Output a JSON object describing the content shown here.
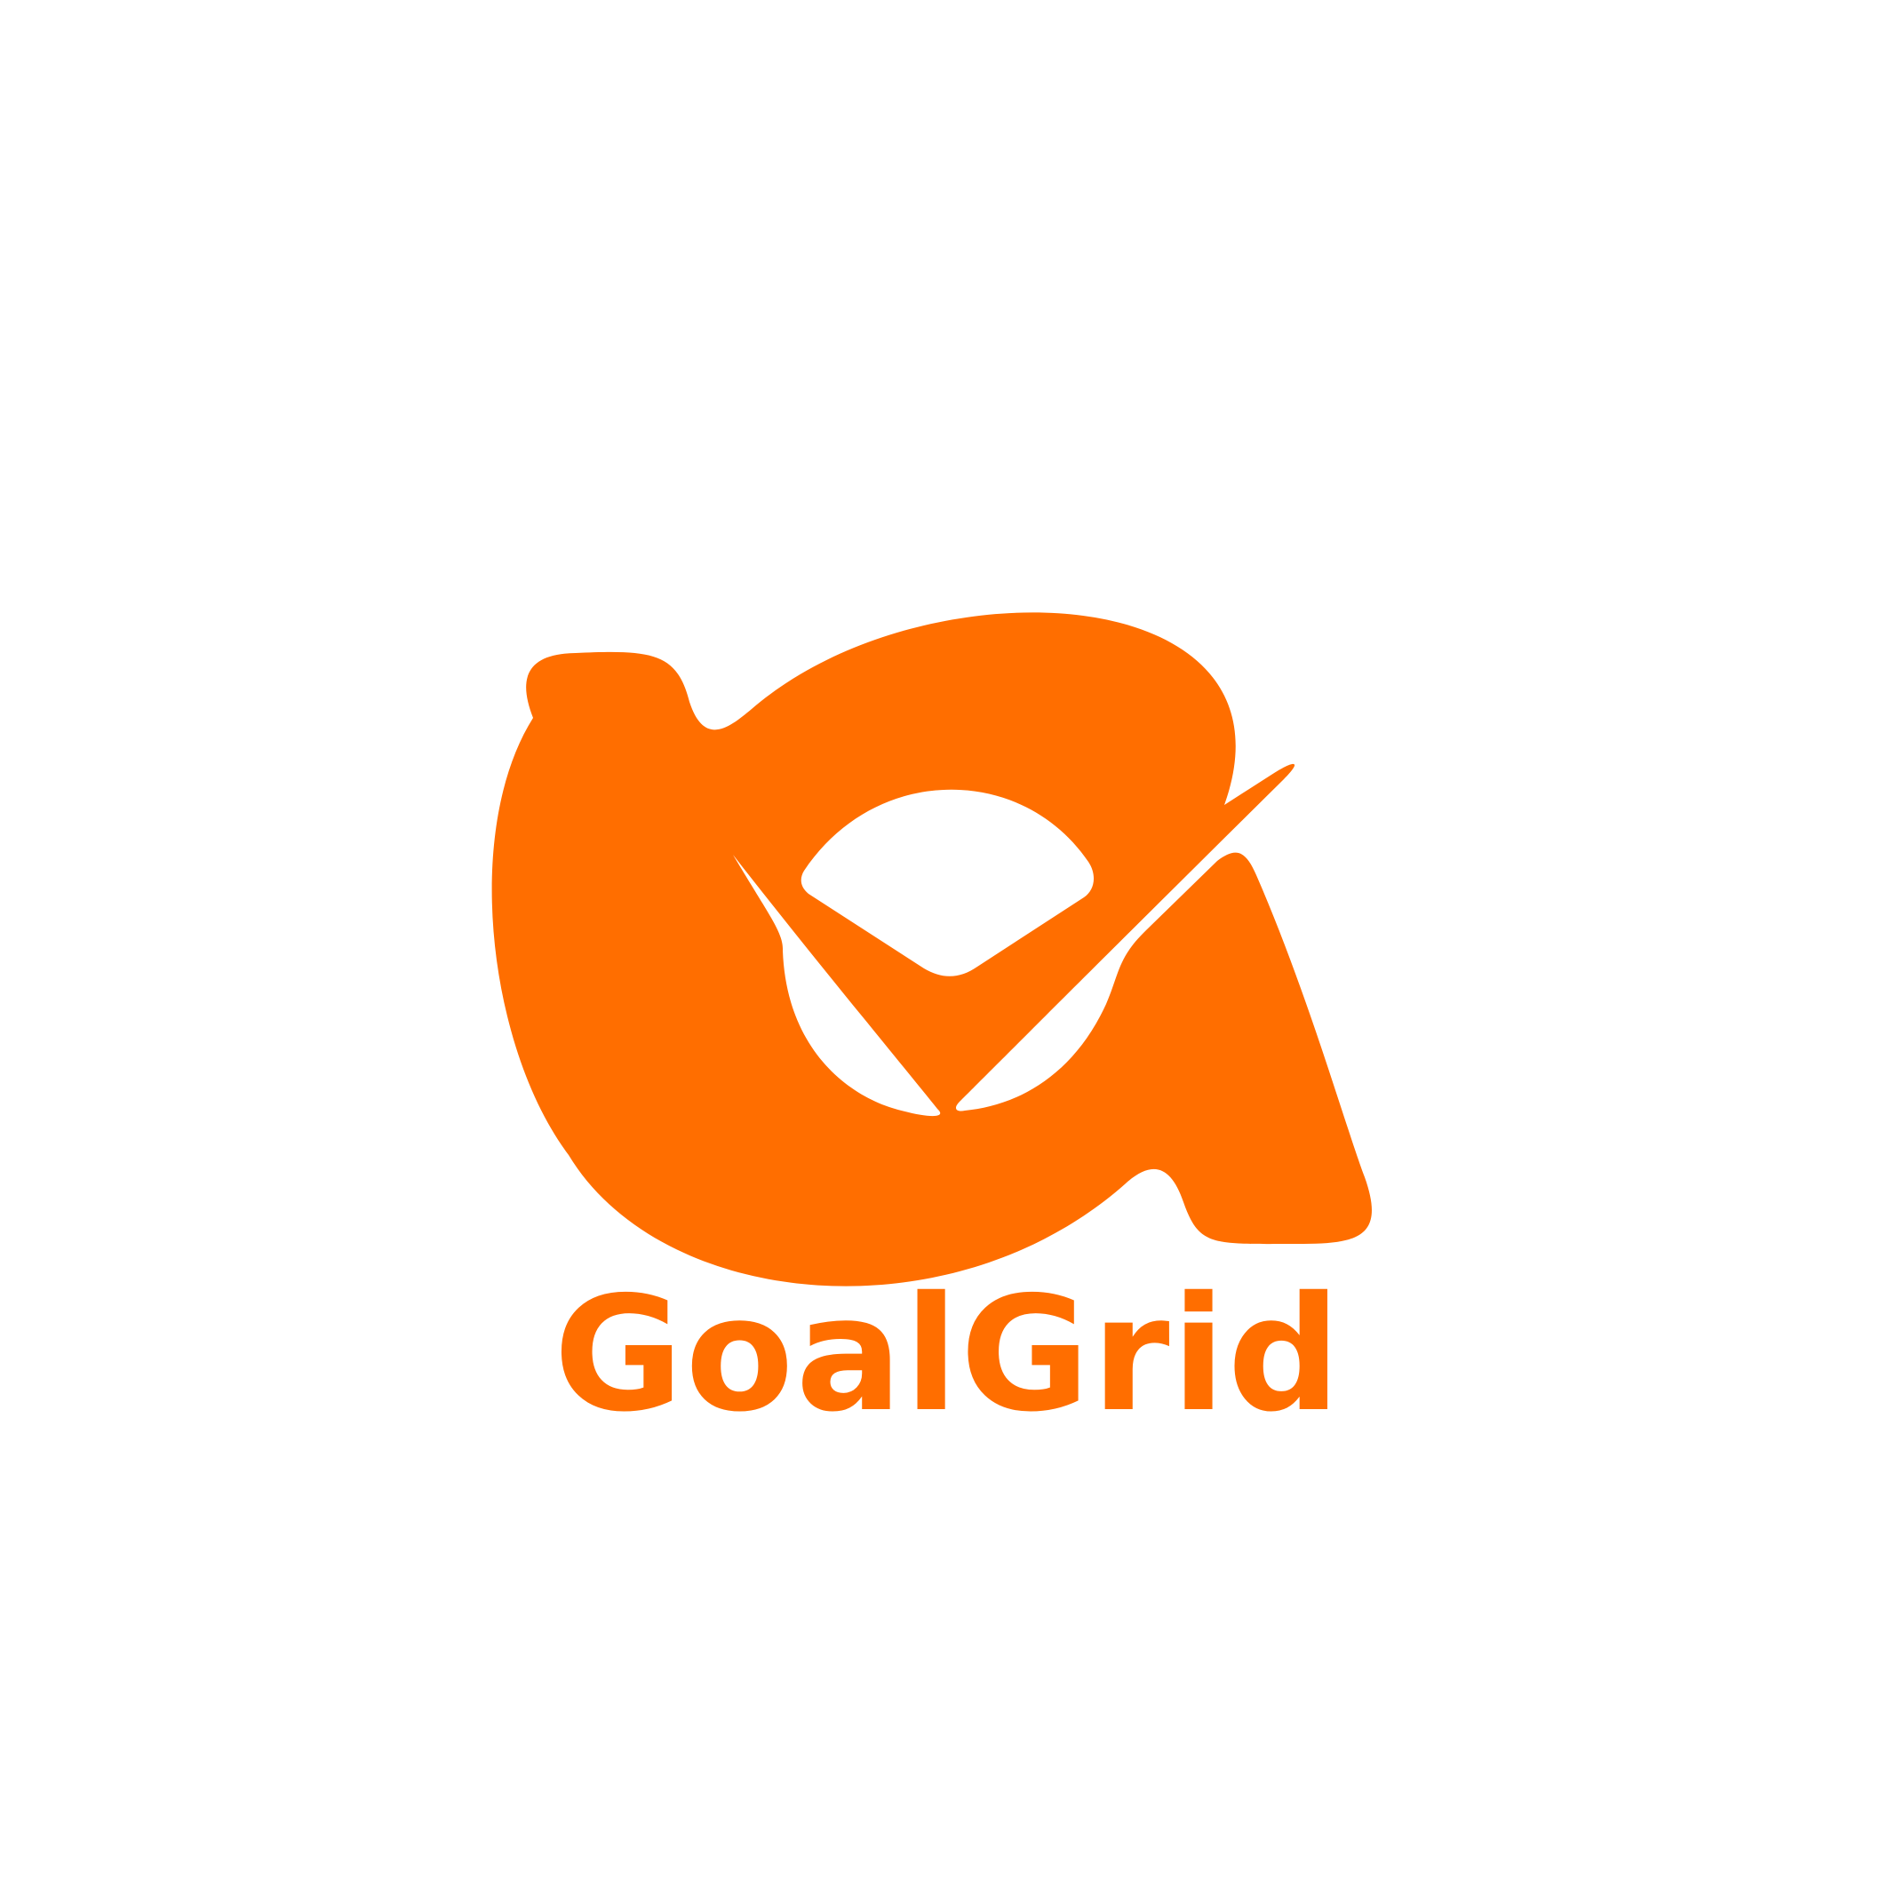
{
  "brand": {
    "name": "GoalGrid",
    "primary_color": "#ff6e00",
    "background_color": "#ffffff",
    "logo_icon": "checkmark-loop-logo-icon"
  }
}
